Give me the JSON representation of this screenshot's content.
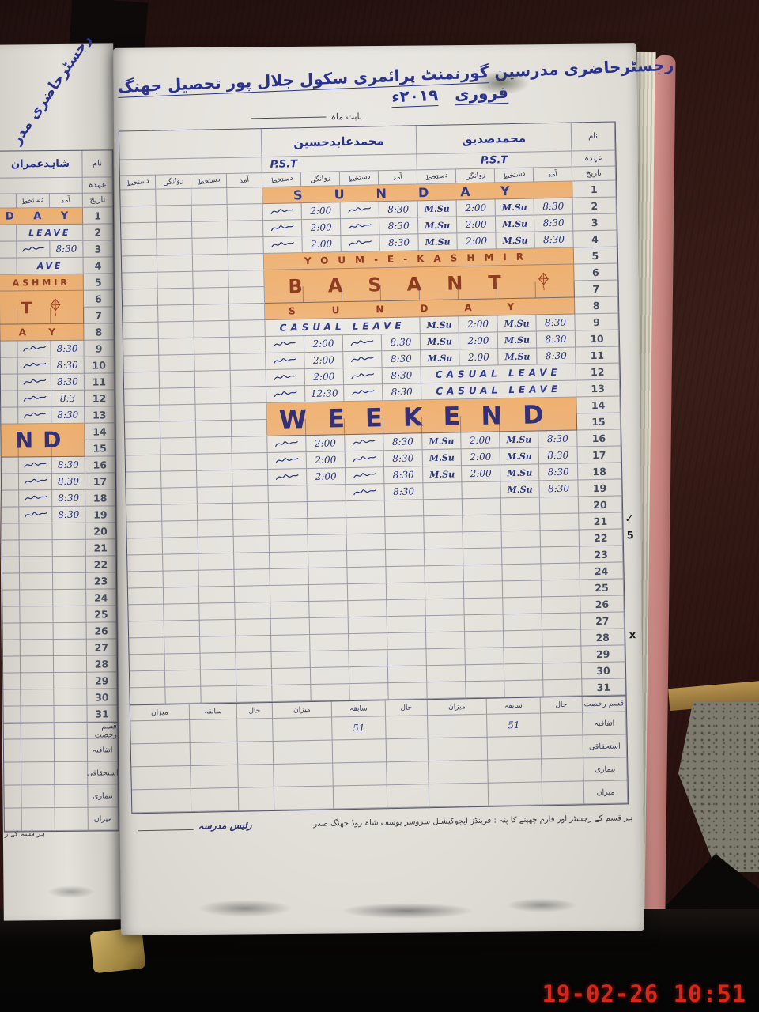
{
  "scene": {
    "timestamp": "19-02-26  10:51",
    "colors": {
      "highlight_orange": "#f09c46",
      "ink_blue": "#2f3a8e",
      "ink_red": "#8e3c22",
      "timestamp_red": "#d8271a",
      "cover_pink": "#c98e89",
      "wood_brown": "#2c1512"
    }
  },
  "left_page": {
    "title_fragment": "رجسٹرحاضری مدر",
    "teacher_name": "شاہدعمران",
    "labels": {
      "name": "نام",
      "designation": "عہدہ",
      "date": "تاریخ"
    },
    "sub_headers": [
      "دستخط",
      "آمد"
    ],
    "rows": [
      {
        "d": 1,
        "banner": "D A Y",
        "ink": "blue"
      },
      {
        "d": 2,
        "text": "LEAVE",
        "caps": true
      },
      {
        "d": 3,
        "text": "8:30",
        "sig": true
      },
      {
        "d": 4,
        "text": "AVE",
        "caps": true
      },
      {
        "d": 5,
        "banner": "ASHMIR",
        "ink": "red"
      },
      {
        "d": 6,
        "banner": "T",
        "ink": "red",
        "span": 2,
        "kite": true
      },
      {
        "d": 8,
        "banner": "A Y",
        "ink": "red"
      },
      {
        "d": 9,
        "text": "8:30",
        "sig": true
      },
      {
        "d": 10,
        "text": "8:30",
        "sig": true
      },
      {
        "d": 11,
        "text": "8:30",
        "sig": true
      },
      {
        "d": 12,
        "text": "8:3",
        "sig": true
      },
      {
        "d": 13,
        "text": "8:30",
        "sig": true
      },
      {
        "d": 14,
        "banner": "ND",
        "ink": "navy",
        "span": 2
      },
      {
        "d": 16,
        "text": "8:30",
        "sig": true
      },
      {
        "d": 17,
        "text": "8:30",
        "sig": true
      },
      {
        "d": 18,
        "text": "8:30",
        "sig": true
      },
      {
        "d": 19,
        "text": "8:30",
        "sig": true
      }
    ],
    "summary_labels": [
      "قسم رخصت",
      "اتفاقیہ",
      "استحقاقی",
      "بیماری",
      "میزان"
    ],
    "footer_fragment": "ہر قسم کے ر"
  },
  "main_page": {
    "title_plain": "رجسٹرحاضری مدرسین",
    "title_underlined": "گورنمنٹ پرائمری سکول جلال پور تحصیل جھنگ",
    "title_month": "فروری",
    "title_year": "۲۰۱۹ء",
    "month_label": "بابت ماہ",
    "labels": {
      "name": "نام",
      "designation": "عہدہ",
      "date": "تاریخ"
    },
    "sub_headers": [
      "دستخط",
      "روانگی",
      "دستخط",
      "آمد"
    ],
    "teachers": [
      {
        "name": "",
        "designation": ""
      },
      {
        "name": "محمدعابدحسین",
        "designation": "P.S.T"
      },
      {
        "name": "محمدصدیق",
        "designation": "P.S.T"
      }
    ],
    "signature_msu": "M.Su",
    "rows": [
      {
        "d": 1,
        "banner": "SUNDAY",
        "ink": "blue"
      },
      {
        "d": 2,
        "b1": [
          "SIG",
          "2:00",
          "SIG",
          "8:30"
        ],
        "b2": [
          "MSU",
          "2:00",
          "MSU",
          "8:30"
        ]
      },
      {
        "d": 3,
        "b1": [
          "SIG",
          "2:00",
          "SIG",
          "8:30"
        ],
        "b2": [
          "MSU",
          "2:00",
          "MSU",
          "8:30"
        ]
      },
      {
        "d": 4,
        "b1": [
          "SIG",
          "2:00",
          "SIG",
          "8:30"
        ],
        "b2": [
          "MSU",
          "2:00",
          "MSU",
          "8:30"
        ]
      },
      {
        "d": 5,
        "banner": "YOUM-E-KASHMIR",
        "ink": "red"
      },
      {
        "d": 6,
        "banner": "BASANT",
        "ink": "red",
        "span": 2,
        "kite": true
      },
      {
        "d": 8,
        "banner": "SUNDAY",
        "ink": "red"
      },
      {
        "d": 9,
        "b1banner": "CASUAL LEAVE",
        "b2": [
          "MSU",
          "2:00",
          "MSU",
          "8:30"
        ]
      },
      {
        "d": 10,
        "b1": [
          "SIG",
          "2:00",
          "SIG",
          "8:30"
        ],
        "b2": [
          "MSU",
          "2:00",
          "MSU",
          "8:30"
        ]
      },
      {
        "d": 11,
        "b1": [
          "SIG",
          "2:00",
          "SIG",
          "8:30"
        ],
        "b2": [
          "MSU",
          "2:00",
          "MSU",
          "8:30"
        ]
      },
      {
        "d": 12,
        "b1": [
          "SIG",
          "2:00",
          "SIG",
          "8:30"
        ],
        "b2banner": "CASUAL LEAVE"
      },
      {
        "d": 13,
        "b1": [
          "SIG",
          "12:30",
          "SIG",
          "8:30"
        ],
        "b2banner": "CASUAL LEAVE"
      },
      {
        "d": 14,
        "banner": "WEEKEND",
        "ink": "navy",
        "span": 2
      },
      {
        "d": 16,
        "b1": [
          "SIG",
          "2:00",
          "SIG",
          "8:30"
        ],
        "b2": [
          "MSU",
          "2:00",
          "MSU",
          "8:30"
        ]
      },
      {
        "d": 17,
        "b1": [
          "SIG",
          "2:00",
          "SIG",
          "8:30"
        ],
        "b2": [
          "MSU",
          "2:00",
          "MSU",
          "8:30"
        ]
      },
      {
        "d": 18,
        "b1": [
          "SIG",
          "2:00",
          "SIG",
          "8:30"
        ],
        "b2": [
          "MSU",
          "2:00",
          "MSU",
          "8:30"
        ]
      },
      {
        "d": 19,
        "b1": [
          "",
          "",
          "SIG",
          "8:30"
        ],
        "b2": [
          "",
          "",
          "MSU",
          "8:30"
        ]
      }
    ],
    "date_marks": {
      "21": "✓",
      "22": "5",
      "28": "x"
    },
    "summary": {
      "row_label_header": "قسم رخصت",
      "col_headers": [
        "میزان",
        "سابقہ",
        "حال"
      ],
      "row_labels": [
        "اتفاقیہ",
        "استحقاقی",
        "بیماری",
        "میزان"
      ],
      "values_atfaqia": {
        "abid_sabiqa": "51",
        "siddique_sabiqa": "51"
      }
    },
    "footer_print": "ہر قسم کے رجسٹر اور فارم چھپنے کا پتہ : فرینڈز ایجوکیشنل سروسز یوسف شاہ روڈ جھنگ صدر",
    "footer_sign": "رئیس مدرسہ"
  }
}
